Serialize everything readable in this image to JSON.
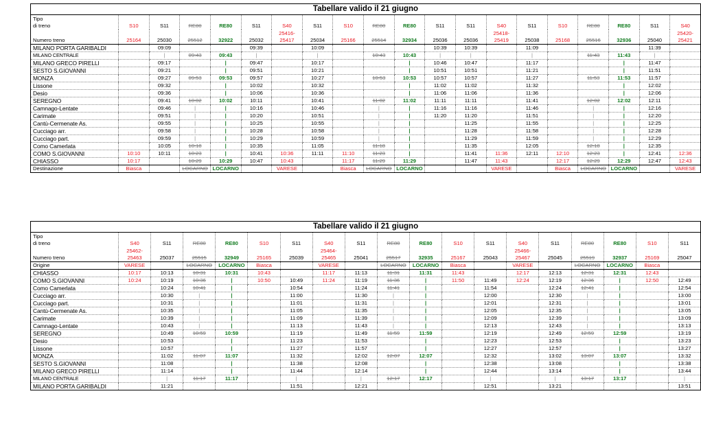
{
  "table1": {
    "title": "Tabellare valido il 21 giugno",
    "head_label": [
      "Tipo",
      "di treno"
    ],
    "num_label": "Numero treno",
    "dest_label": "Destinazione",
    "trains": [
      {
        "type": "S10",
        "num": [
          "25164"
        ],
        "c": "red"
      },
      {
        "type": "S11",
        "num": [
          "25030"
        ],
        "c": "blk"
      },
      {
        "type": "RE80",
        "num": [
          "25512"
        ],
        "c": "str"
      },
      {
        "type": "RE80",
        "num": [
          "32922"
        ],
        "c": "grn"
      },
      {
        "type": "S11",
        "num": [
          "25032"
        ],
        "c": "blk"
      },
      {
        "type": "S40",
        "num": [
          "25416-",
          "25417"
        ],
        "c": "red"
      },
      {
        "type": "S11",
        "num": [
          "25034"
        ],
        "c": "blk"
      },
      {
        "type": "S10",
        "num": [
          "25166"
        ],
        "c": "red"
      },
      {
        "type": "RE80",
        "num": [
          "25514"
        ],
        "c": "str"
      },
      {
        "type": "RE80",
        "num": [
          "32934"
        ],
        "c": "grn"
      },
      {
        "type": "S11",
        "num": [
          "25036"
        ],
        "c": "blk"
      },
      {
        "type": "S11",
        "num": [
          "25036"
        ],
        "c": "blk"
      },
      {
        "type": "S40",
        "num": [
          "25418-",
          "25419"
        ],
        "c": "red"
      },
      {
        "type": "S11",
        "num": [
          "25038"
        ],
        "c": "blk"
      },
      {
        "type": "S10",
        "num": [
          "25168"
        ],
        "c": "red"
      },
      {
        "type": "RE80",
        "num": [
          "25516"
        ],
        "c": "str"
      },
      {
        "type": "RE80",
        "num": [
          "32936"
        ],
        "c": "grn"
      },
      {
        "type": "S11",
        "num": [
          "25040"
        ],
        "c": "blk"
      },
      {
        "type": "S40",
        "num": [
          "25420-",
          "25421"
        ],
        "c": "red"
      }
    ],
    "stops": [
      {
        "name": "MILANO PORTA GARIBALDI",
        "t": [
          "",
          "09:09",
          "",
          "",
          "09:39",
          "",
          "10:09",
          "",
          "",
          "",
          "10:39",
          "10:39",
          "",
          "11:09",
          "",
          "",
          "",
          "11:39",
          ""
        ]
      },
      {
        "name": "MILANO CENTRALE",
        "small": true,
        "t": [
          "",
          "|",
          "09:43",
          "09:43",
          "|",
          "",
          "|",
          "",
          "10:43",
          "10:43",
          "|",
          "|",
          "",
          "|",
          "",
          "11:43",
          "11:43",
          "|",
          ""
        ]
      },
      {
        "name": "MILANO GRECO PIRELLI",
        "t": [
          "",
          "09:17",
          "",
          "|",
          "09:47",
          "",
          "10:17",
          "",
          "",
          "|",
          "10:46",
          "10:47",
          "",
          "11:17",
          "",
          "",
          "|",
          "11:47",
          ""
        ]
      },
      {
        "name": "SESTO S.GIOVANNI",
        "t": [
          "",
          "09:21",
          "",
          "|",
          "09:51",
          "",
          "10:21",
          "",
          "",
          "|",
          "10:51",
          "10:51",
          "",
          "11:21",
          "",
          "",
          "|",
          "11:51",
          ""
        ]
      },
      {
        "name": "MONZA",
        "t": [
          "",
          "09:27",
          "09:53",
          "09:53",
          "09:57",
          "",
          "10:27",
          "",
          "10:53",
          "10:53",
          "10:57",
          "10:57",
          "",
          "11:27",
          "",
          "11:53",
          "11:53",
          "11:57",
          ""
        ]
      },
      {
        "name": "Lissone",
        "t": [
          "",
          "09:32",
          "",
          "|",
          "10:02",
          "",
          "10:32",
          "",
          "",
          "|",
          "11:02",
          "11:02",
          "",
          "11:32",
          "",
          "",
          "|",
          "12:02",
          ""
        ]
      },
      {
        "name": "Desio",
        "t": [
          "",
          "09:36",
          "",
          "|",
          "10:06",
          "",
          "10:36",
          "",
          "",
          "|",
          "11:06",
          "11:06",
          "",
          "11:36",
          "",
          "",
          "|",
          "12:06",
          ""
        ]
      },
      {
        "name": "SEREGNO",
        "t": [
          "",
          "09:41",
          "10:02",
          "10:02",
          "10:11",
          "",
          "10:41",
          "",
          "11:02",
          "11:02",
          "11:11",
          "11:11",
          "",
          "11:41",
          "",
          "12:02",
          "12:02",
          "12:11",
          ""
        ]
      },
      {
        "name": "Camnago-Lentate",
        "t": [
          "",
          "09:46",
          "|",
          "|",
          "10:16",
          "",
          "10:46",
          "",
          "|",
          "|",
          "11:16",
          "11:16",
          "",
          "11:46",
          "",
          "|",
          "|",
          "12:16",
          ""
        ]
      },
      {
        "name": "Carimate",
        "t": [
          "",
          "09:51",
          "|",
          "|",
          "10:20",
          "",
          "10:51",
          "",
          "|",
          "|",
          "11:20",
          "11:20",
          "",
          "11:51",
          "",
          "|",
          "|",
          "12:20",
          ""
        ]
      },
      {
        "name": "Cantù-Cermenate As.",
        "t": [
          "",
          "09:55",
          "|",
          "|",
          "10:25",
          "",
          "10:55",
          "",
          "|",
          "|",
          "",
          "11:25",
          "",
          "11:55",
          "",
          "|",
          "|",
          "12:25",
          ""
        ]
      },
      {
        "name": "Cucciago arr.",
        "t": [
          "",
          "09:58",
          "|",
          "|",
          "10:28",
          "",
          "10:58",
          "",
          "|",
          "|",
          "",
          "11:28",
          "",
          "11:58",
          "",
          "|",
          "|",
          "12:28",
          ""
        ]
      },
      {
        "name": "Cucciago part.",
        "t": [
          "",
          "09:59",
          "|",
          "|",
          "10:29",
          "",
          "10:59",
          "",
          "|",
          "|",
          "",
          "11:29",
          "",
          "11:59",
          "",
          "|",
          "|",
          "12:29",
          ""
        ]
      },
      {
        "name": "Como Camerlata",
        "t": [
          "",
          "10:05",
          "10:18",
          "|",
          "10:35",
          "",
          "11:05",
          "",
          "11:18",
          "|",
          "",
          "11:35",
          "",
          "12:05",
          "",
          "12:18",
          "|",
          "12:35",
          ""
        ]
      },
      {
        "name": "COMO S.GIOVANNI",
        "t": [
          "10:10",
          "10:11",
          "10:23",
          "|",
          "10:41",
          "10:36",
          "11:11",
          "11:10",
          "11:23",
          "|",
          "",
          "11:41",
          "11:36",
          "12:11",
          "12:10",
          "12:23",
          "|",
          "12:41",
          "12:36"
        ]
      },
      {
        "name": "CHIASSO",
        "big": true,
        "t": [
          "10:17",
          "",
          "10:29",
          "10:29",
          "10:47",
          "10:43",
          "",
          "11:17",
          "11:29",
          "11:29",
          "",
          "11:47",
          "11:43",
          "",
          "12:17",
          "12:29",
          "12:29",
          "12:47",
          "12:43"
        ]
      }
    ],
    "dest": [
      "Biasca",
      "",
      "LOCARNO",
      "LOCARNO",
      "",
      "VARESE",
      "",
      "Biasca",
      "LOCARNO",
      "LOCARNO",
      "",
      "",
      "VARESE",
      "",
      "Biasca",
      "LOCARNO",
      "LOCARNO",
      "",
      "VARESE"
    ]
  },
  "table2": {
    "title": "Tabellare valido il 21 giugno",
    "head_label": [
      "Tipo",
      "di treno"
    ],
    "num_label": "Numero treno",
    "origin_label": "Origine",
    "trains": [
      {
        "type": "S40",
        "num": [
          "25462-",
          "25463"
        ],
        "c": "red"
      },
      {
        "type": "S11",
        "num": [
          "25037"
        ],
        "c": "blk"
      },
      {
        "type": "RE80",
        "num": [
          "25515"
        ],
        "c": "str"
      },
      {
        "type": "RE80",
        "num": [
          "32949"
        ],
        "c": "grn"
      },
      {
        "type": "S10",
        "num": [
          "25165"
        ],
        "c": "red"
      },
      {
        "type": "S11",
        "num": [
          "25039"
        ],
        "c": "blk"
      },
      {
        "type": "S40",
        "num": [
          "25464-",
          "25465"
        ],
        "c": "red"
      },
      {
        "type": "S11",
        "num": [
          "25041"
        ],
        "c": "blk"
      },
      {
        "type": "RE80",
        "num": [
          "25517"
        ],
        "c": "str"
      },
      {
        "type": "RE80",
        "num": [
          "32935"
        ],
        "c": "grn"
      },
      {
        "type": "S10",
        "num": [
          "25167"
        ],
        "c": "red"
      },
      {
        "type": "S11",
        "num": [
          "25043"
        ],
        "c": "blk"
      },
      {
        "type": "S40",
        "num": [
          "25466-",
          "25467"
        ],
        "c": "red"
      },
      {
        "type": "S11",
        "num": [
          "25045"
        ],
        "c": "blk"
      },
      {
        "type": "RE80",
        "num": [
          "25519"
        ],
        "c": "str"
      },
      {
        "type": "RE80",
        "num": [
          "32937"
        ],
        "c": "grn"
      },
      {
        "type": "S10",
        "num": [
          "25169"
        ],
        "c": "red"
      },
      {
        "type": "S11",
        "num": [
          "25047"
        ],
        "c": "blk"
      }
    ],
    "origin": [
      "VARESE",
      "",
      "LOCARNO",
      "LOCARNO",
      "Biasca",
      "",
      "VARESE",
      "",
      "LOCARNO",
      "LOCARNO",
      "Biasca",
      "",
      "VARESE",
      "",
      "LOCARNO",
      "LOCARNO",
      "Biasca",
      ""
    ],
    "stops": [
      {
        "name": "CHIASSO",
        "big": true,
        "t": [
          "10:17",
          "10:13",
          "10:31",
          "10:31",
          "10:43",
          "",
          "11:17",
          "11:13",
          "11:31",
          "11:31",
          "11:43",
          "",
          "12:17",
          "12:13",
          "12:31",
          "12:31",
          "12:43",
          ""
        ]
      },
      {
        "name": "COMO S.GIOVANNI",
        "t": [
          "10:24",
          "10:19",
          "10:36",
          "|",
          "10:50",
          "10:49",
          "11:24",
          "11:19",
          "11:36",
          "|",
          "11:50",
          "11:49",
          "12:24",
          "12:19",
          "12:36",
          "|",
          "12:50",
          "12:49"
        ]
      },
      {
        "name": "Como Camerlata",
        "t": [
          "",
          "10:24",
          "10:41",
          "|",
          "",
          "10:54",
          "",
          "11:24",
          "11:41",
          "|",
          "",
          "11:54",
          "",
          "12:24",
          "12:41",
          "|",
          "",
          "12:54"
        ]
      },
      {
        "name": "Cucciago arr.",
        "t": [
          "",
          "10:30",
          "|",
          "|",
          "",
          "11:00",
          "",
          "11:30",
          "|",
          "|",
          "",
          "12:00",
          "",
          "12:30",
          "|",
          "|",
          "",
          "13:00"
        ]
      },
      {
        "name": "Cucciago part.",
        "t": [
          "",
          "10:31",
          "|",
          "|",
          "",
          "11:01",
          "",
          "11:31",
          "|",
          "|",
          "",
          "12:01",
          "",
          "12:31",
          "|",
          "|",
          "",
          "13:01"
        ]
      },
      {
        "name": "Cantù-Cermenate As.",
        "t": [
          "",
          "10:35",
          "|",
          "|",
          "",
          "11:05",
          "",
          "11:35",
          "|",
          "|",
          "",
          "12:05",
          "",
          "12:35",
          "|",
          "|",
          "",
          "13:05"
        ]
      },
      {
        "name": "Carimate",
        "t": [
          "",
          "10:39",
          "|",
          "|",
          "",
          "11:09",
          "",
          "11:39",
          "|",
          "|",
          "",
          "12:09",
          "",
          "12:39",
          "|",
          "|",
          "",
          "13:09"
        ]
      },
      {
        "name": "Camnago-Lentate",
        "t": [
          "",
          "10:43",
          "|",
          "|",
          "",
          "11:13",
          "",
          "11:43",
          "|",
          "|",
          "",
          "12:13",
          "",
          "12:43",
          "|",
          "|",
          "",
          "13:13"
        ]
      },
      {
        "name": "SEREGNO",
        "t": [
          "",
          "10:49",
          "10:59",
          "10:59",
          "",
          "11:19",
          "",
          "11:49",
          "11:59",
          "11:59",
          "",
          "12:19",
          "",
          "12:49",
          "12:59",
          "12:59",
          "",
          "13:19"
        ]
      },
      {
        "name": "Desio",
        "t": [
          "",
          "10:53",
          "",
          "|",
          "",
          "11:23",
          "",
          "11:53",
          "",
          "|",
          "",
          "12:23",
          "",
          "12:53",
          "",
          "|",
          "",
          "13:23"
        ]
      },
      {
        "name": "Lissone",
        "t": [
          "",
          "10:57",
          "",
          "|",
          "",
          "11:27",
          "",
          "11:57",
          "",
          "|",
          "",
          "12:27",
          "",
          "12:57",
          "",
          "|",
          "",
          "13:27"
        ]
      },
      {
        "name": "MONZA",
        "t": [
          "",
          "11:02",
          "11:07",
          "11:07",
          "",
          "11:32",
          "",
          "12:02",
          "12:07",
          "12:07",
          "",
          "12:32",
          "",
          "13:02",
          "13:07",
          "13:07",
          "",
          "13:32"
        ]
      },
      {
        "name": "SESTO S.GIOVANNI",
        "t": [
          "",
          "11:08",
          "",
          "|",
          "",
          "11:38",
          "",
          "12:08",
          "",
          "|",
          "",
          "12:38",
          "",
          "13:08",
          "",
          "|",
          "",
          "13:38"
        ]
      },
      {
        "name": "MILANO GRECO PIRELLI",
        "t": [
          "",
          "11:14",
          "",
          "|",
          "",
          "11:44",
          "",
          "12:14",
          "",
          "|",
          "",
          "12:44",
          "",
          "13:14",
          "",
          "|",
          "",
          "13:44"
        ]
      },
      {
        "name": "MILANO CENTRALE",
        "small": true,
        "t": [
          "",
          "|",
          "11:17",
          "11:17",
          "",
          "|",
          "",
          "|",
          "12:17",
          "12:17",
          "",
          "|",
          "",
          "|",
          "13:17",
          "13:17",
          "",
          "|"
        ]
      },
      {
        "name": "MILANO PORTA GARIBALDI",
        "t": [
          "",
          "11:21",
          "",
          "",
          "",
          "11:51",
          "",
          "12:21",
          "",
          "",
          "",
          "12:51",
          "",
          "13:21",
          "",
          "",
          "",
          "13:51"
        ]
      }
    ]
  }
}
